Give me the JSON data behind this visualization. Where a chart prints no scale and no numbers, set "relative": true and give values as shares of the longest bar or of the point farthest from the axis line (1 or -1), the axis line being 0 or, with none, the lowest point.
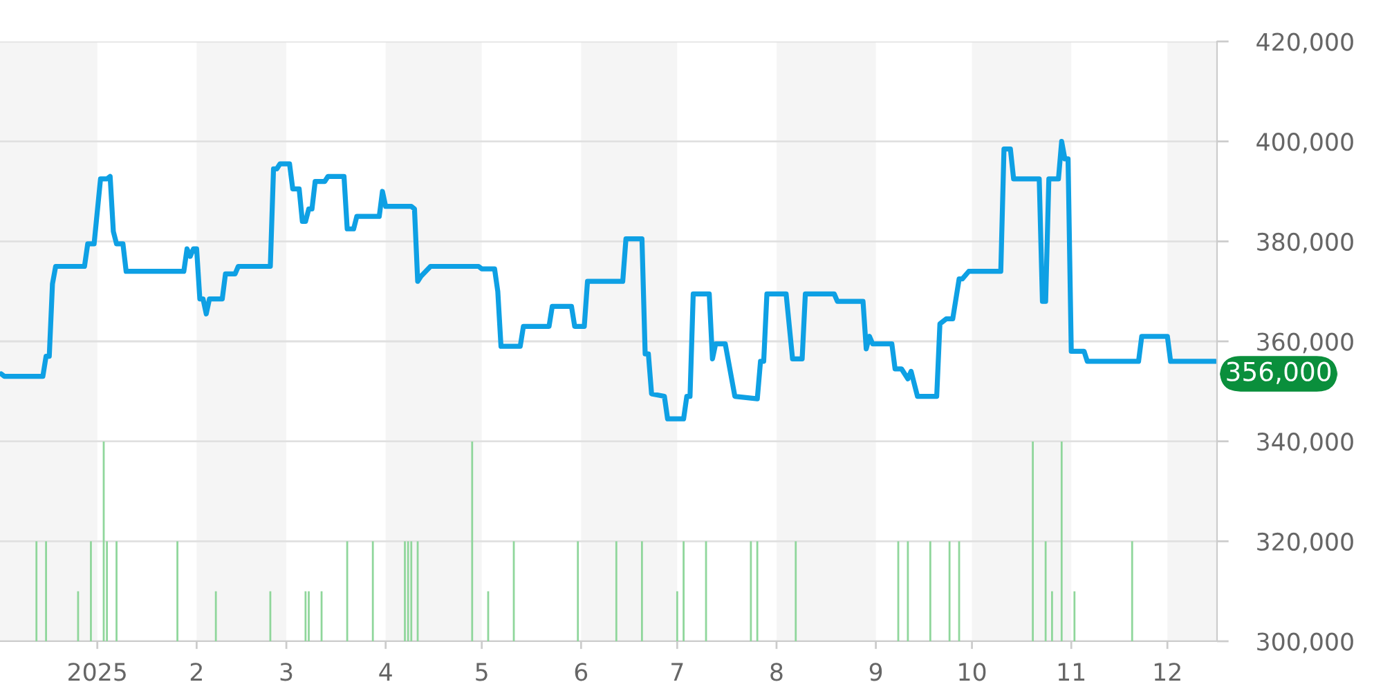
{
  "chart_data": [
    {
      "type": "line",
      "series": [
        {
          "color": "#0ea0e4",
          "x": [
            "2024-12-02",
            "2024-12-03",
            "2024-12-15",
            "2024-12-16",
            "2024-12-17",
            "2024-12-18",
            "2024-12-19",
            "2024-12-28",
            "2024-12-29",
            "2024-12-31",
            "2025-01-02",
            "2025-01-04",
            "2025-01-05",
            "2025-01-06",
            "2025-01-07",
            "2025-01-09",
            "2025-01-10",
            "2025-01-28",
            "2025-01-29",
            "2025-01-30",
            "2025-01-31",
            "2025-02-01",
            "2025-02-02",
            "2025-02-03",
            "2025-02-04",
            "2025-02-05",
            "2025-02-09",
            "2025-02-10",
            "2025-02-13",
            "2025-02-14",
            "2025-02-24",
            "2025-02-25",
            "2025-02-26",
            "2025-02-27",
            "2025-03-02",
            "2025-03-03",
            "2025-03-05",
            "2025-03-06",
            "2025-03-07",
            "2025-03-08",
            "2025-03-09",
            "2025-03-10",
            "2025-03-13",
            "2025-03-14",
            "2025-03-19",
            "2025-03-20",
            "2025-03-22",
            "2025-03-23",
            "2025-03-30",
            "2025-03-31",
            "2025-04-01",
            "2025-04-09",
            "2025-04-10",
            "2025-04-11",
            "2025-04-12",
            "2025-04-15",
            "2025-04-30",
            "2025-05-01",
            "2025-05-05",
            "2025-05-06",
            "2025-05-07",
            "2025-05-13",
            "2025-05-14",
            "2025-05-22",
            "2025-05-23",
            "2025-05-29",
            "2025-05-30",
            "2025-06-02",
            "2025-06-03",
            "2025-06-14",
            "2025-06-15",
            "2025-06-20",
            "2025-06-21",
            "2025-06-22",
            "2025-06-23",
            "2025-06-27",
            "2025-06-28",
            "2025-07-03",
            "2025-07-04",
            "2025-07-05",
            "2025-07-06",
            "2025-07-11",
            "2025-07-12",
            "2025-07-13",
            "2025-07-16",
            "2025-07-19",
            "2025-07-26",
            "2025-07-27",
            "2025-07-28",
            "2025-07-29",
            "2025-08-04",
            "2025-08-06",
            "2025-08-09",
            "2025-08-10",
            "2025-08-19",
            "2025-08-20",
            "2025-08-28",
            "2025-08-29",
            "2025-08-30",
            "2025-08-31",
            "2025-09-06",
            "2025-09-07",
            "2025-09-09",
            "2025-09-11",
            "2025-09-12",
            "2025-09-14",
            "2025-09-20",
            "2025-09-21",
            "2025-09-23",
            "2025-09-25",
            "2025-09-27",
            "2025-09-28",
            "2025-09-30",
            "2025-10-10",
            "2025-10-11",
            "2025-10-13",
            "2025-10-14",
            "2025-10-22",
            "2025-10-23",
            "2025-10-24",
            "2025-10-25",
            "2025-10-28",
            "2025-10-29",
            "2025-10-30",
            "2025-10-31",
            "2025-11-01",
            "2025-11-05",
            "2025-11-06",
            "2025-11-22",
            "2025-11-23",
            "2025-12-01",
            "2025-12-02",
            "2025-12-16"
          ],
          "values": [
            353500,
            353000,
            353000,
            357000,
            357000,
            371500,
            375000,
            375000,
            379500,
            379500,
            392500,
            392500,
            393000,
            382000,
            379500,
            379500,
            374000,
            374000,
            378500,
            377000,
            378500,
            378500,
            368500,
            368500,
            365500,
            368500,
            368500,
            373500,
            373500,
            375000,
            375000,
            394500,
            394500,
            395500,
            395500,
            390500,
            390500,
            384000,
            384000,
            386500,
            386500,
            392000,
            392000,
            393000,
            393000,
            382500,
            382500,
            385000,
            385000,
            390000,
            387000,
            387000,
            386500,
            372000,
            373000,
            375000,
            375000,
            374500,
            374500,
            370000,
            359000,
            359000,
            363000,
            363000,
            367000,
            367000,
            363000,
            363000,
            372000,
            372000,
            380500,
            380500,
            357500,
            357500,
            349500,
            349000,
            344500,
            344500,
            349000,
            349000,
            369500,
            369500,
            356500,
            359500,
            359500,
            349000,
            348500,
            356000,
            356000,
            369500,
            369500,
            356500,
            356500,
            369500,
            369500,
            368000,
            368000,
            358500,
            361000,
            359500,
            359500,
            354500,
            354500,
            352500,
            354000,
            349000,
            349000,
            363500,
            364500,
            364500,
            372500,
            372500,
            374000,
            374000,
            398500,
            398500,
            392500,
            392500,
            368000,
            368000,
            392500,
            392500,
            400000,
            396500,
            396500,
            358000,
            358000,
            356000,
            356000,
            361000,
            361000,
            356000,
            356000
          ]
        }
      ],
      "xlim": [
        "2024-12-01T15:00",
        "2025-12-16T12:00"
      ],
      "xticks": [
        {
          "value": "2025-01-01",
          "label": "2025"
        },
        {
          "value": "2025-02-01",
          "label": "2"
        },
        {
          "value": "2025-03-01",
          "label": "3"
        },
        {
          "value": "2025-04-01",
          "label": "4"
        },
        {
          "value": "2025-05-01",
          "label": "5"
        },
        {
          "value": "2025-06-01",
          "label": "6"
        },
        {
          "value": "2025-07-01",
          "label": "7"
        },
        {
          "value": "2025-08-01",
          "label": "8"
        },
        {
          "value": "2025-09-01",
          "label": "9"
        },
        {
          "value": "2025-10-01",
          "label": "10"
        },
        {
          "value": "2025-11-01",
          "label": "11"
        },
        {
          "value": "2025-12-01",
          "label": "12"
        }
      ],
      "ylim": [
        300000,
        420000
      ],
      "yticks": [
        {
          "value": 300000,
          "label": "300,000"
        },
        {
          "value": 320000,
          "label": "320,000"
        },
        {
          "value": 340000,
          "label": "340,000"
        },
        {
          "value": 360000,
          "label": "360,000"
        },
        {
          "value": 380000,
          "label": "380,000"
        },
        {
          "value": 400000,
          "label": "400,000"
        },
        {
          "value": 420000,
          "label": "420,000"
        }
      ],
      "grid": "y",
      "bands": [
        {
          "axis": "x",
          "from": "2024-12-01T15:00",
          "to": "2025-01-01",
          "color": "#f5f5f5"
        },
        {
          "axis": "x",
          "from": "2025-02-01",
          "to": "2025-03-01",
          "color": "#f5f5f5"
        },
        {
          "axis": "x",
          "from": "2025-04-01",
          "to": "2025-05-01",
          "color": "#f5f5f5"
        },
        {
          "axis": "x",
          "from": "2025-06-01",
          "to": "2025-07-01",
          "color": "#f5f5f5"
        },
        {
          "axis": "x",
          "from": "2025-08-01",
          "to": "2025-09-01",
          "color": "#f5f5f5"
        },
        {
          "axis": "x",
          "from": "2025-10-01",
          "to": "2025-11-01",
          "color": "#f5f5f5"
        },
        {
          "axis": "x",
          "from": "2025-12-01",
          "to": "2025-12-16T12:00",
          "color": "#f5f5f5"
        }
      ],
      "annotations": [
        {
          "text": "356,000",
          "x": "2025-12-16",
          "y": 356000
        }
      ]
    },
    {
      "type": "bar",
      "relative": true,
      "color": "#8fd69b",
      "tick_labels": false,
      "xlim": [
        "2024-12-01T15:00",
        "2025-12-16T12:00"
      ],
      "x": [
        "2024-12-13",
        "2024-12-16",
        "2024-12-26",
        "2024-12-30",
        "2025-01-03",
        "2025-01-04",
        "2025-01-07",
        "2025-01-26",
        "2025-02-07",
        "2025-02-24",
        "2025-03-07",
        "2025-03-08",
        "2025-03-12",
        "2025-03-20",
        "2025-03-28",
        "2025-04-07",
        "2025-04-08",
        "2025-04-09",
        "2025-04-11",
        "2025-04-28",
        "2025-05-03",
        "2025-05-11",
        "2025-05-31",
        "2025-06-12",
        "2025-06-20",
        "2025-07-01",
        "2025-07-03",
        "2025-07-10",
        "2025-07-24",
        "2025-07-26",
        "2025-08-07",
        "2025-09-08",
        "2025-09-11",
        "2025-09-18",
        "2025-09-24",
        "2025-09-27",
        "2025-10-20",
        "2025-10-24",
        "2025-10-26",
        "2025-10-29",
        "2025-11-02",
        "2025-11-20"
      ],
      "values": [
        0.5,
        0.5,
        0.25,
        0.5,
        1,
        0.5,
        0.5,
        0.5,
        0.25,
        0.25,
        0.25,
        0.25,
        0.25,
        0.5,
        0.5,
        0.5,
        0.5,
        0.5,
        0.5,
        1,
        0.25,
        0.5,
        0.5,
        0.5,
        0.5,
        0.25,
        0.5,
        0.5,
        0.5,
        0.5,
        0.5,
        0.5,
        0.5,
        0.5,
        0.5,
        0.5,
        1,
        0.5,
        0.25,
        1,
        0.25,
        0.5
      ]
    }
  ]
}
